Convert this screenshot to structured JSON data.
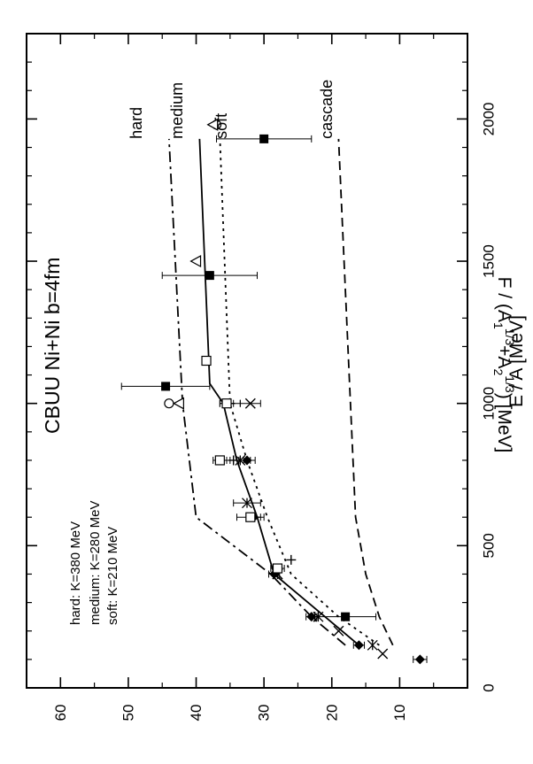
{
  "chart_data": {
    "type": "line",
    "orientation": "rotated-90-ccw",
    "title": "CBUU Ni+Ni b=4fm",
    "xlabel": "E / A   [MeV]",
    "ylabel": "F / (A₁¹ᐟ³+A₂¹ᐟ³)   [MeV]",
    "ylabel_parts": {
      "prefix": "F / (A",
      "sub1": "1",
      "sup1": "1/3",
      "mid": "+A",
      "sub2": "2",
      "sup2": "1/3",
      "suffix": ")   [MeV]"
    },
    "xlim": [
      0,
      2300
    ],
    "ylim": [
      0,
      65
    ],
    "xticks": [
      0,
      500,
      1000,
      1500,
      2000
    ],
    "yticks": [
      10,
      20,
      30,
      40,
      50,
      60
    ],
    "grid": false,
    "legend_lines": [
      "hard: K=380 MeV",
      "medium: K=280 MeV",
      "soft: K=210 MeV"
    ],
    "series": [
      {
        "name": "hard",
        "style": "dashdot",
        "x": [
          150,
          250,
          400,
          600,
          1000,
          1930
        ],
        "y": [
          18,
          23,
          29,
          40,
          42,
          44
        ]
      },
      {
        "name": "medium",
        "style": "solid",
        "x": [
          150,
          250,
          400,
          600,
          800,
          1000,
          1070,
          1930
        ],
        "y": [
          16,
          21,
          28.5,
          31,
          34,
          36,
          38,
          39.5
        ]
      },
      {
        "name": "soft",
        "style": "dotted",
        "x": [
          150,
          250,
          400,
          600,
          800,
          1000,
          1930
        ],
        "y": [
          13,
          19,
          26,
          29.5,
          32.5,
          35,
          36.5
        ]
      },
      {
        "name": "cascade",
        "style": "dashed",
        "x": [
          150,
          250,
          400,
          600,
          1930
        ],
        "y": [
          11,
          13,
          15,
          16.5,
          19
        ]
      }
    ],
    "points": [
      {
        "marker": "filled-diamond",
        "x": 100,
        "y": 7,
        "err": 1
      },
      {
        "marker": "filled-diamond",
        "x": 150,
        "y": 16,
        "err": 0.8
      },
      {
        "marker": "filled-diamond",
        "x": 250,
        "y": 23,
        "err": 0.8
      },
      {
        "marker": "filled-diamond",
        "x": 400,
        "y": 28.5,
        "err": 0.8
      },
      {
        "marker": "filled-diamond",
        "x": 600,
        "y": 31.5,
        "err": 1
      },
      {
        "marker": "filled-diamond",
        "x": 800,
        "y": 32.5,
        "err": 1.2
      },
      {
        "marker": "asterisk",
        "x": 150,
        "y": 14,
        "err": 0
      },
      {
        "marker": "asterisk",
        "x": 250,
        "y": 22,
        "err": 0
      },
      {
        "marker": "asterisk",
        "x": 400,
        "y": 28,
        "err": 0
      },
      {
        "marker": "asterisk",
        "x": 650,
        "y": 32.5,
        "err": 2
      },
      {
        "marker": "asterisk",
        "x": 800,
        "y": 33.5,
        "err": 1.5
      },
      {
        "marker": "cross",
        "x": 120,
        "y": 12.5,
        "err": 0
      },
      {
        "marker": "cross",
        "x": 200,
        "y": 19,
        "err": 0
      },
      {
        "marker": "cross",
        "x": 400,
        "y": 28,
        "err": 0
      },
      {
        "marker": "cross",
        "x": 1000,
        "y": 32,
        "err": 1.5
      },
      {
        "marker": "plus",
        "x": 250,
        "y": 22.5,
        "err": 0
      },
      {
        "marker": "plus",
        "x": 450,
        "y": 26,
        "err": 0
      },
      {
        "marker": "plus",
        "x": 800,
        "y": 34.5,
        "err": 1.5
      },
      {
        "marker": "plus",
        "x": 1000,
        "y": 35,
        "err": 1.5
      },
      {
        "marker": "open-square",
        "x": 420,
        "y": 28,
        "err": 1
      },
      {
        "marker": "open-square",
        "x": 600,
        "y": 32,
        "err": 2
      },
      {
        "marker": "open-square",
        "x": 800,
        "y": 36.5,
        "err": 1
      },
      {
        "marker": "open-square",
        "x": 1000,
        "y": 35.5,
        "err": 1
      },
      {
        "marker": "open-square",
        "x": 1150,
        "y": 38.5,
        "err": 0
      },
      {
        "marker": "open-circle",
        "x": 1000,
        "y": 44,
        "err": 0
      },
      {
        "marker": "open-circle",
        "x": 1980,
        "y": 37,
        "err": 0
      },
      {
        "marker": "open-triangle",
        "x": 1000,
        "y": 42.5,
        "err": 0
      },
      {
        "marker": "open-triangle",
        "x": 1500,
        "y": 40,
        "err": 0
      },
      {
        "marker": "open-triangle",
        "x": 1980,
        "y": 37.5,
        "err": 0
      },
      {
        "marker": "filled-square",
        "x": 250,
        "y": 18,
        "err": 4.5
      },
      {
        "marker": "filled-square",
        "x": 1060,
        "y": 44.5,
        "err": 6.5
      },
      {
        "marker": "filled-square",
        "x": 1450,
        "y": 38,
        "err": 7
      },
      {
        "marker": "filled-square",
        "x": 1930,
        "y": 30,
        "err": 7
      }
    ],
    "annotations": [
      {
        "text": "hard",
        "x": 1930,
        "y": 48
      },
      {
        "text": "medium",
        "x": 1930,
        "y": 42
      },
      {
        "text": "soft",
        "x": 1930,
        "y": 35.5
      },
      {
        "text": "cascade",
        "x": 1930,
        "y": 20
      }
    ]
  }
}
